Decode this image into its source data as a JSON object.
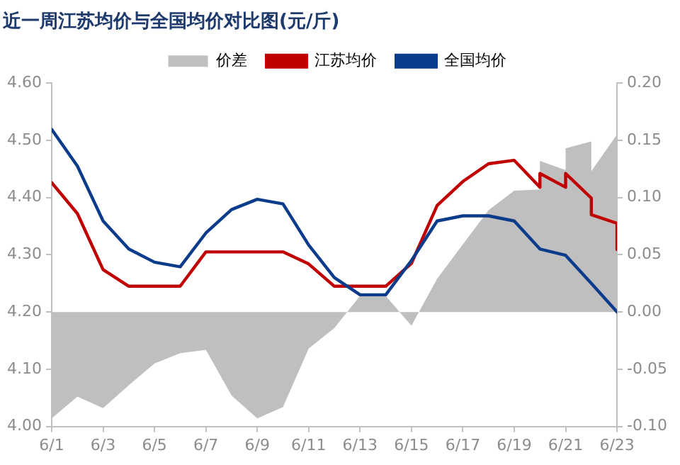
{
  "chart_data": {
    "type": "line",
    "title": "近一周江苏均价与全国均价对比图(元/斤)",
    "legend": "top",
    "grid": false,
    "marker": "none",
    "line_style": "solid",
    "xlim": [
      "--06-01",
      "--06-23"
    ],
    "xticks": [
      {
        "value": "--06-01",
        "label": "6/1"
      },
      {
        "value": "--06-03",
        "label": "6/3"
      },
      {
        "value": "--06-05",
        "label": "6/5"
      },
      {
        "value": "--06-07",
        "label": "6/7"
      },
      {
        "value": "--06-09",
        "label": "6/9"
      },
      {
        "value": "--06-11",
        "label": "6/11"
      },
      {
        "value": "--06-13",
        "label": "6/13"
      },
      {
        "value": "--06-15",
        "label": "6/15"
      },
      {
        "value": "--06-17",
        "label": "6/17"
      },
      {
        "value": "--06-19",
        "label": "6/19"
      },
      {
        "value": "--06-21",
        "label": "6/21"
      },
      {
        "value": "--06-23",
        "label": "6/23"
      }
    ],
    "ylim": [
      4.0,
      4.6
    ],
    "yticks": [
      {
        "value": 4.0,
        "label": "4.00"
      },
      {
        "value": 4.1,
        "label": "4.10"
      },
      {
        "value": 4.2,
        "label": "4.20"
      },
      {
        "value": 4.3,
        "label": "4.30"
      },
      {
        "value": 4.4,
        "label": "4.40"
      },
      {
        "value": 4.5,
        "label": "4.50"
      },
      {
        "value": 4.6,
        "label": "4.60"
      }
    ],
    "y2lim": [
      -0.1,
      0.2
    ],
    "y2ticks": [
      {
        "value": -0.1,
        "label": "-0.10"
      },
      {
        "value": -0.05,
        "label": "-0.05"
      },
      {
        "value": 0,
        "label": "0.00"
      },
      {
        "value": 0.05,
        "label": "0.05"
      },
      {
        "value": 0.1,
        "label": "0.10"
      },
      {
        "value": 0.15,
        "label": "0.15"
      },
      {
        "value": 0.2,
        "label": "0.20"
      }
    ],
    "series": [
      {
        "name": "价差",
        "type": "area",
        "axis": "y2",
        "color": "#bfbfbf",
        "x": [
          "--06-01",
          "--06-02",
          "--06-03",
          "--06-04",
          "--06-05",
          "--06-06",
          "--06-07",
          "--06-08",
          "--06-09",
          "--06-10",
          "--06-11",
          "--06-12",
          "--06-13",
          "--06-14",
          "--06-15",
          "--06-16",
          "--06-17",
          "--06-18",
          "--06-19",
          "--06-20",
          "--06-20",
          "--06-21",
          "--06-21",
          "--06-22",
          "--06-22",
          "--06-23"
        ],
        "values": [
          -0.093,
          -0.074,
          -0.084,
          -0.064,
          -0.045,
          -0.036,
          -0.033,
          -0.073,
          -0.093,
          -0.083,
          -0.032,
          -0.014,
          0.014,
          0.014,
          -0.012,
          0.029,
          0.059,
          0.089,
          0.106,
          0.107,
          0.132,
          0.124,
          0.143,
          0.149,
          0.123,
          0.155
        ]
      },
      {
        "name": "江苏均价",
        "color": "#c00000",
        "x": [
          "--06-01",
          "--06-02",
          "--06-03",
          "--06-04",
          "--06-05",
          "--06-06",
          "--06-07",
          "--06-08",
          "--06-09",
          "--06-10",
          "--06-11",
          "--06-12",
          "--06-13",
          "--06-14",
          "--06-15",
          "--06-16",
          "--06-17",
          "--06-18",
          "--06-19",
          "--06-20",
          "--06-20",
          "--06-21",
          "--06-21",
          "--06-22",
          "--06-22",
          "--06-23",
          "--06-23"
        ],
        "values": [
          4.426,
          4.372,
          4.274,
          4.245,
          4.245,
          4.245,
          4.305,
          4.305,
          4.305,
          4.305,
          4.284,
          4.245,
          4.245,
          4.245,
          4.285,
          4.386,
          4.428,
          4.459,
          4.465,
          4.418,
          4.442,
          4.418,
          4.442,
          4.399,
          4.37,
          4.355,
          4.309
        ]
      },
      {
        "name": "全国均价",
        "color": "#0b3c8c",
        "x": [
          "--06-01",
          "--06-02",
          "--06-03",
          "--06-04",
          "--06-05",
          "--06-06",
          "--06-07",
          "--06-08",
          "--06-09",
          "--06-10",
          "--06-11",
          "--06-12",
          "--06-13",
          "--06-14",
          "--06-15",
          "--06-16",
          "--06-17",
          "--06-18",
          "--06-19",
          "--06-20",
          "--06-21",
          "--06-22",
          "--06-23"
        ],
        "values": [
          4.519,
          4.455,
          4.359,
          4.31,
          4.287,
          4.279,
          4.338,
          4.379,
          4.397,
          4.389,
          4.317,
          4.26,
          4.23,
          4.23,
          4.29,
          4.359,
          4.368,
          4.368,
          4.359,
          4.31,
          4.299,
          4.25,
          4.2
        ]
      }
    ]
  }
}
